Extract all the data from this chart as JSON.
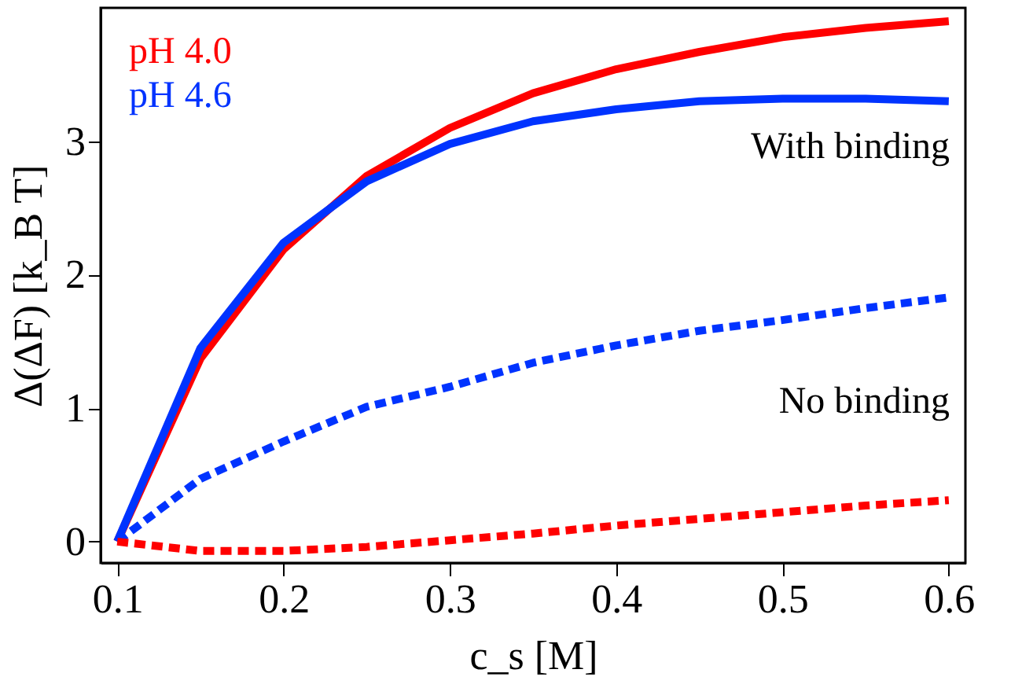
{
  "chart_data": {
    "type": "line",
    "xlabel": "c_s [M]",
    "ylabel": "Δ(ΔF) [k_B T]",
    "x": [
      0.1,
      0.15,
      0.2,
      0.25,
      0.3,
      0.35,
      0.4,
      0.45,
      0.5,
      0.55,
      0.6
    ],
    "series": [
      {
        "name": "pH 4.0",
        "color": "#ff0000",
        "line_style": "solid",
        "values": [
          0,
          1.37,
          2.19,
          2.74,
          3.1,
          3.36,
          3.54,
          3.67,
          3.78,
          3.85,
          3.9
        ]
      },
      {
        "name": "pH 4.6",
        "color": "#0033ff",
        "line_style": "solid",
        "values": [
          0,
          1.45,
          2.24,
          2.7,
          2.98,
          3.15,
          3.24,
          3.3,
          3.32,
          3.32,
          3.3
        ]
      },
      {
        "color": "#0033ff",
        "line_style": "dashed",
        "values": [
          0,
          0.47,
          0.75,
          1.01,
          1.16,
          1.34,
          1.47,
          1.58,
          1.66,
          1.75,
          1.83
        ]
      },
      {
        "color": "#ff0000",
        "line_style": "dashed",
        "values": [
          0,
          -0.07,
          -0.07,
          -0.04,
          0.01,
          0.06,
          0.12,
          0.17,
          0.22,
          0.27,
          0.31
        ]
      }
    ],
    "annotations": [
      "With binding",
      "No binding"
    ],
    "xlim": [
      0.09,
      0.61
    ],
    "xticks": [
      0.1,
      0.2,
      0.3,
      0.4,
      0.5,
      0.6
    ],
    "ylim": [
      -0.16,
      4.0
    ],
    "yticks": [
      0,
      1,
      2,
      3
    ],
    "legend": "top left",
    "grid": false,
    "marker": "none"
  }
}
